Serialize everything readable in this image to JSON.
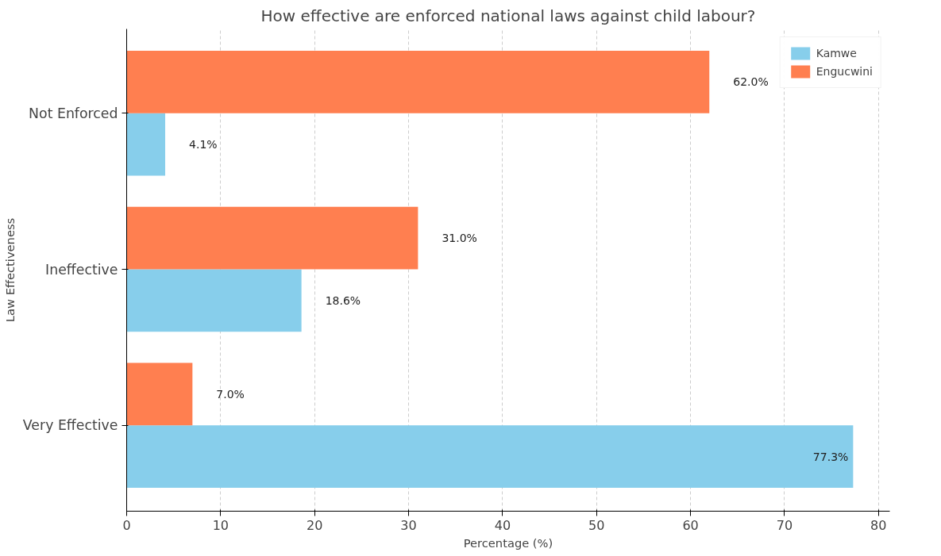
{
  "chart_data": {
    "type": "bar",
    "orientation": "horizontal",
    "title": "How effective are enforced national laws against child labour?",
    "xlabel": "Percentage (%)",
    "ylabel": "Law Effectiveness",
    "categories": [
      "Not Enforced",
      "Ineffective",
      "Very Effective"
    ],
    "series": [
      {
        "name": "Kamwe",
        "color": "#87ceeb",
        "values": [
          4.1,
          18.6,
          77.3
        ],
        "value_labels": [
          "4.1%",
          "18.6%",
          "77.3%"
        ]
      },
      {
        "name": "Engucwini",
        "color": "#ff7f50",
        "values": [
          62.0,
          31.0,
          7.0
        ],
        "value_labels": [
          "62.0%",
          "31.0%",
          "7.0%"
        ]
      }
    ],
    "xlim": [
      0,
      81.2
    ],
    "xticks": [
      0,
      10,
      20,
      30,
      40,
      50,
      60,
      70,
      80
    ],
    "grid": "x",
    "legend": "top right"
  }
}
